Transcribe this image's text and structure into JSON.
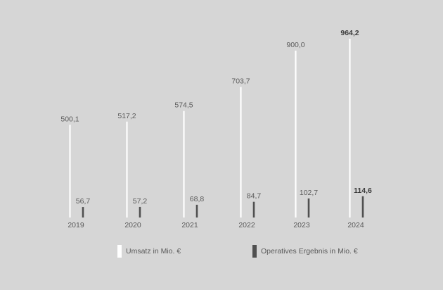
{
  "chart_data": {
    "type": "bar",
    "categories": [
      "2019",
      "2020",
      "2021",
      "2022",
      "2023",
      "2024"
    ],
    "series": [
      {
        "name": "Umsatz in Mio. €",
        "values": [
          500.1,
          517.2,
          574.5,
          703.7,
          900.0,
          964.2
        ],
        "labels": [
          "500,1",
          "517,2",
          "574,5",
          "703,7",
          "900,0",
          "964,2"
        ],
        "color": "#ffffff"
      },
      {
        "name": "Operatives Ergebnis in Mio. €",
        "values": [
          56.7,
          57.2,
          68.8,
          84.7,
          102.7,
          114.6
        ],
        "labels": [
          "56,7",
          "57,2",
          "68,8",
          "84,7",
          "102,7",
          "114,6"
        ],
        "color": "#505050"
      }
    ],
    "highlight_category": "2024",
    "legend_position": "bottom",
    "grid": false,
    "title": "",
    "xlabel": "",
    "ylabel": ""
  },
  "colors": {
    "background": "#d6d6d6",
    "text": "#5a5a5a",
    "text_bold": "#3c3c3c"
  }
}
